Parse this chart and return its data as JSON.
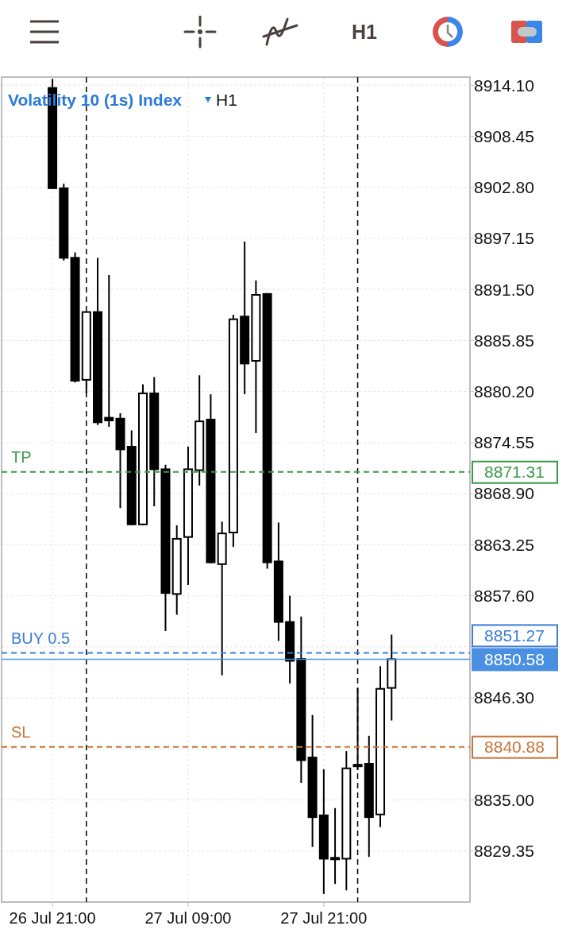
{
  "chart_data": {
    "type": "candlestick",
    "title": "Volatility 10 (1s) Index",
    "subtitle": "H1",
    "annotations": [
      "H1",
      "8871.31",
      "8851.27",
      "8850.58",
      "8840.88"
    ],
    "x": [
      "--07-26T21:00",
      "--07-26T22:00",
      "--07-26T23:00",
      "--07-27T00:00",
      "--07-27T01:00",
      "--07-27T02:00",
      "--07-27T03:00",
      "--07-27T04:00",
      "--07-27T05:00",
      "--07-27T06:00",
      "--07-27T07:00",
      "--07-27T08:00",
      "--07-27T09:00",
      "--07-27T10:00",
      "--07-27T11:00",
      "--07-27T12:00",
      "--07-27T13:00",
      "--07-27T14:00",
      "--07-27T15:00",
      "--07-27T16:00",
      "--07-27T17:00",
      "--07-27T18:00",
      "--07-27T19:00",
      "--07-27T20:00",
      "--07-27T21:00",
      "--07-27T22:00",
      "--07-27T23:00",
      "--07-28T00:00",
      "--07-28T01:00",
      "--07-28T02:00",
      "--07-28T03:00"
    ],
    "ohlc": [
      [
        8913.8,
        8914.8,
        8902.7,
        8902.7
      ],
      [
        8902.7,
        8903.2,
        8894.7,
        8895.0
      ],
      [
        8895.0,
        8895.6,
        8881.2,
        8881.4
      ],
      [
        8881.5,
        8889.0,
        8880.0,
        8889.0
      ],
      [
        8889.0,
        8895.0,
        8876.5,
        8876.8
      ],
      [
        8877.3,
        8893.1,
        8876.3,
        8877.0
      ],
      [
        8877.2,
        8877.8,
        8867.3,
        8873.8
      ],
      [
        8874.1,
        8875.9,
        8865.4,
        8865.5
      ],
      [
        8865.5,
        8881.0,
        8865.4,
        8880.0
      ],
      [
        8880.0,
        8881.8,
        8867.5,
        8871.6
      ],
      [
        8871.6,
        8872.1,
        8853.7,
        8857.9
      ],
      [
        8857.8,
        8865.4,
        8855.5,
        8863.9
      ],
      [
        8864.1,
        8874.1,
        8858.8,
        8871.6
      ],
      [
        8871.5,
        8882.0,
        8869.8,
        8876.9
      ],
      [
        8877.1,
        8879.9,
        8861.2,
        8861.3
      ],
      [
        8861.1,
        8865.8,
        8848.8,
        8864.5
      ],
      [
        8864.6,
        8888.7,
        8863.0,
        8888.2
      ],
      [
        8888.5,
        8896.8,
        8879.9,
        8883.3
      ],
      [
        8883.6,
        8892.5,
        8875.6,
        8890.9
      ],
      [
        8891.0,
        8891.1,
        8860.6,
        8861.3
      ],
      [
        8861.4,
        8865.7,
        8852.6,
        8854.7
      ],
      [
        8854.7,
        8857.6,
        8847.9,
        8850.4
      ],
      [
        8850.6,
        8855.3,
        8836.9,
        8839.4
      ],
      [
        8839.7,
        8844.4,
        8829.8,
        8833.1
      ],
      [
        8833.3,
        8838.4,
        8824.6,
        8828.5
      ],
      [
        8828.6,
        8834.1,
        8825.7,
        8828.5
      ],
      [
        8828.5,
        8840.4,
        8825.0,
        8838.5
      ],
      [
        8838.8,
        8847.4,
        8838.3,
        8838.9
      ],
      [
        8839.0,
        8842.1,
        8828.7,
        8833.1
      ],
      [
        8833.4,
        8849.8,
        8832.0,
        8847.3
      ],
      [
        8847.4,
        8853.3,
        8843.8,
        8850.58
      ]
    ],
    "color": "#000000",
    "xlim": [
      "--07-26T16:30",
      "--07-28T09:56"
    ],
    "xticks": [
      {
        "value": "--07-26T21:00",
        "label": "26 Jul 21:00"
      },
      {
        "value": "--07-27T09:00",
        "label": "27 Jul 09:00"
      },
      {
        "value": "--07-27T21:00",
        "label": "27 Jul 21:00"
      }
    ],
    "ylim": [
      8823.7,
      8915.0
    ],
    "yticks": [
      {
        "value": 8914.1,
        "label": "8914.10"
      },
      {
        "value": 8908.45,
        "label": "8908.45"
      },
      {
        "value": 8902.8,
        "label": "8902.80"
      },
      {
        "value": 8897.15,
        "label": "8897.15"
      },
      {
        "value": 8891.5,
        "label": "8891.50"
      },
      {
        "value": 8885.85,
        "label": "8885.85"
      },
      {
        "value": 8880.2,
        "label": "8880.20"
      },
      {
        "value": 8874.55,
        "label": "8874.55"
      },
      {
        "value": 8868.9,
        "label": "8868.90"
      },
      {
        "value": 8863.25,
        "label": "8863.25"
      },
      {
        "value": 8857.6,
        "label": "8857.60"
      },
      {
        "value": 8851.95,
        "label": null
      },
      {
        "value": 8846.3,
        "label": "8846.30"
      },
      {
        "value": 8840.65,
        "label": null
      },
      {
        "value": 8835.0,
        "label": "8835.00"
      },
      {
        "value": 8829.35,
        "label": "8829.35"
      }
    ],
    "grid": true,
    "ref_lines": [
      {
        "axis": "x",
        "value": "--07-27T00:00",
        "color": "#000000",
        "line_style": "dashed"
      },
      {
        "axis": "x",
        "value": "--07-28T00:00",
        "color": "#000000",
        "line_style": "dashed"
      },
      {
        "axis": "y",
        "value": 8871.31,
        "label": "TP",
        "color": "#3a9a4a",
        "line_style": "dashed"
      },
      {
        "axis": "y",
        "value": 8851.27,
        "label": "BUY 0.5",
        "color": "#3b7dd8",
        "line_style": "dashed"
      },
      {
        "axis": "y",
        "value": 8850.58,
        "color": "#4a90e2",
        "line_style": "solid"
      },
      {
        "axis": "y",
        "value": 8840.88,
        "label": "SL",
        "color": "#c8753a",
        "line_style": "dashed"
      }
    ]
  }
}
